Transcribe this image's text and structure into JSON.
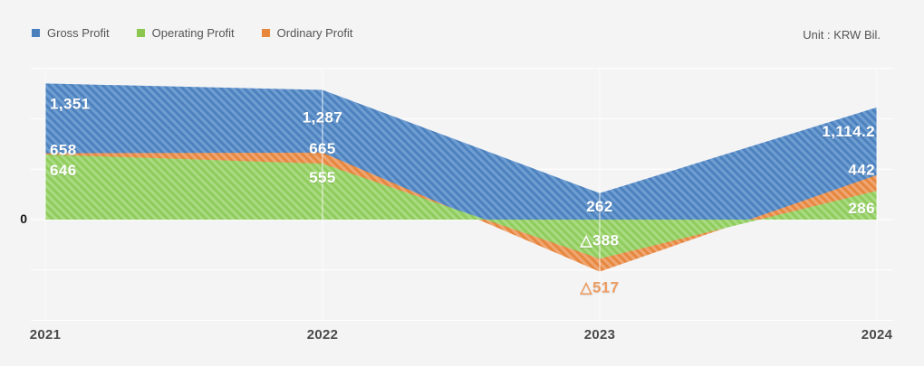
{
  "page": {
    "background": "#f4f4f5"
  },
  "legend": {
    "items": [
      {
        "label": "Gross Profit",
        "color": "#4a80bc"
      },
      {
        "label": "Operating Profit",
        "color": "#8bc64f"
      },
      {
        "label": "Ordinary Profit",
        "color": "#e8863c"
      }
    ]
  },
  "unit_label": "Unit : KRW Bil.",
  "chart_data": {
    "type": "area",
    "title": "",
    "unit": "KRW Bil.",
    "categories": [
      "2021",
      "2022",
      "2023",
      "2024"
    ],
    "series": [
      {
        "name": "Gross Profit",
        "values": [
          1351,
          1287,
          262,
          1114.2
        ],
        "labels": [
          "1,351",
          "1,287",
          "262",
          "1,114.2"
        ],
        "color_dark": "#4d82be",
        "color_light": "#6f9ed2"
      },
      {
        "name": "Ordinary Profit",
        "values": [
          658,
          665,
          -517,
          442
        ],
        "labels": [
          "658",
          "665",
          "△517",
          "442"
        ],
        "color_dark": "#e6873f",
        "color_light": "#f0a672"
      },
      {
        "name": "Operating Profit",
        "values": [
          646,
          555,
          -388,
          286
        ],
        "labels": [
          "646",
          "555",
          "△388",
          "286"
        ],
        "color_dark": "#90cc5c",
        "color_light": "#a9db83"
      }
    ],
    "y_axis": {
      "zero_label": "0",
      "grid_step": 500,
      "min": -1000,
      "max": 1500
    },
    "grid_color": "#ffffff",
    "label_color": "#ffffff",
    "negative_label_color": "#ee9d62",
    "legend_position": "top-left"
  }
}
